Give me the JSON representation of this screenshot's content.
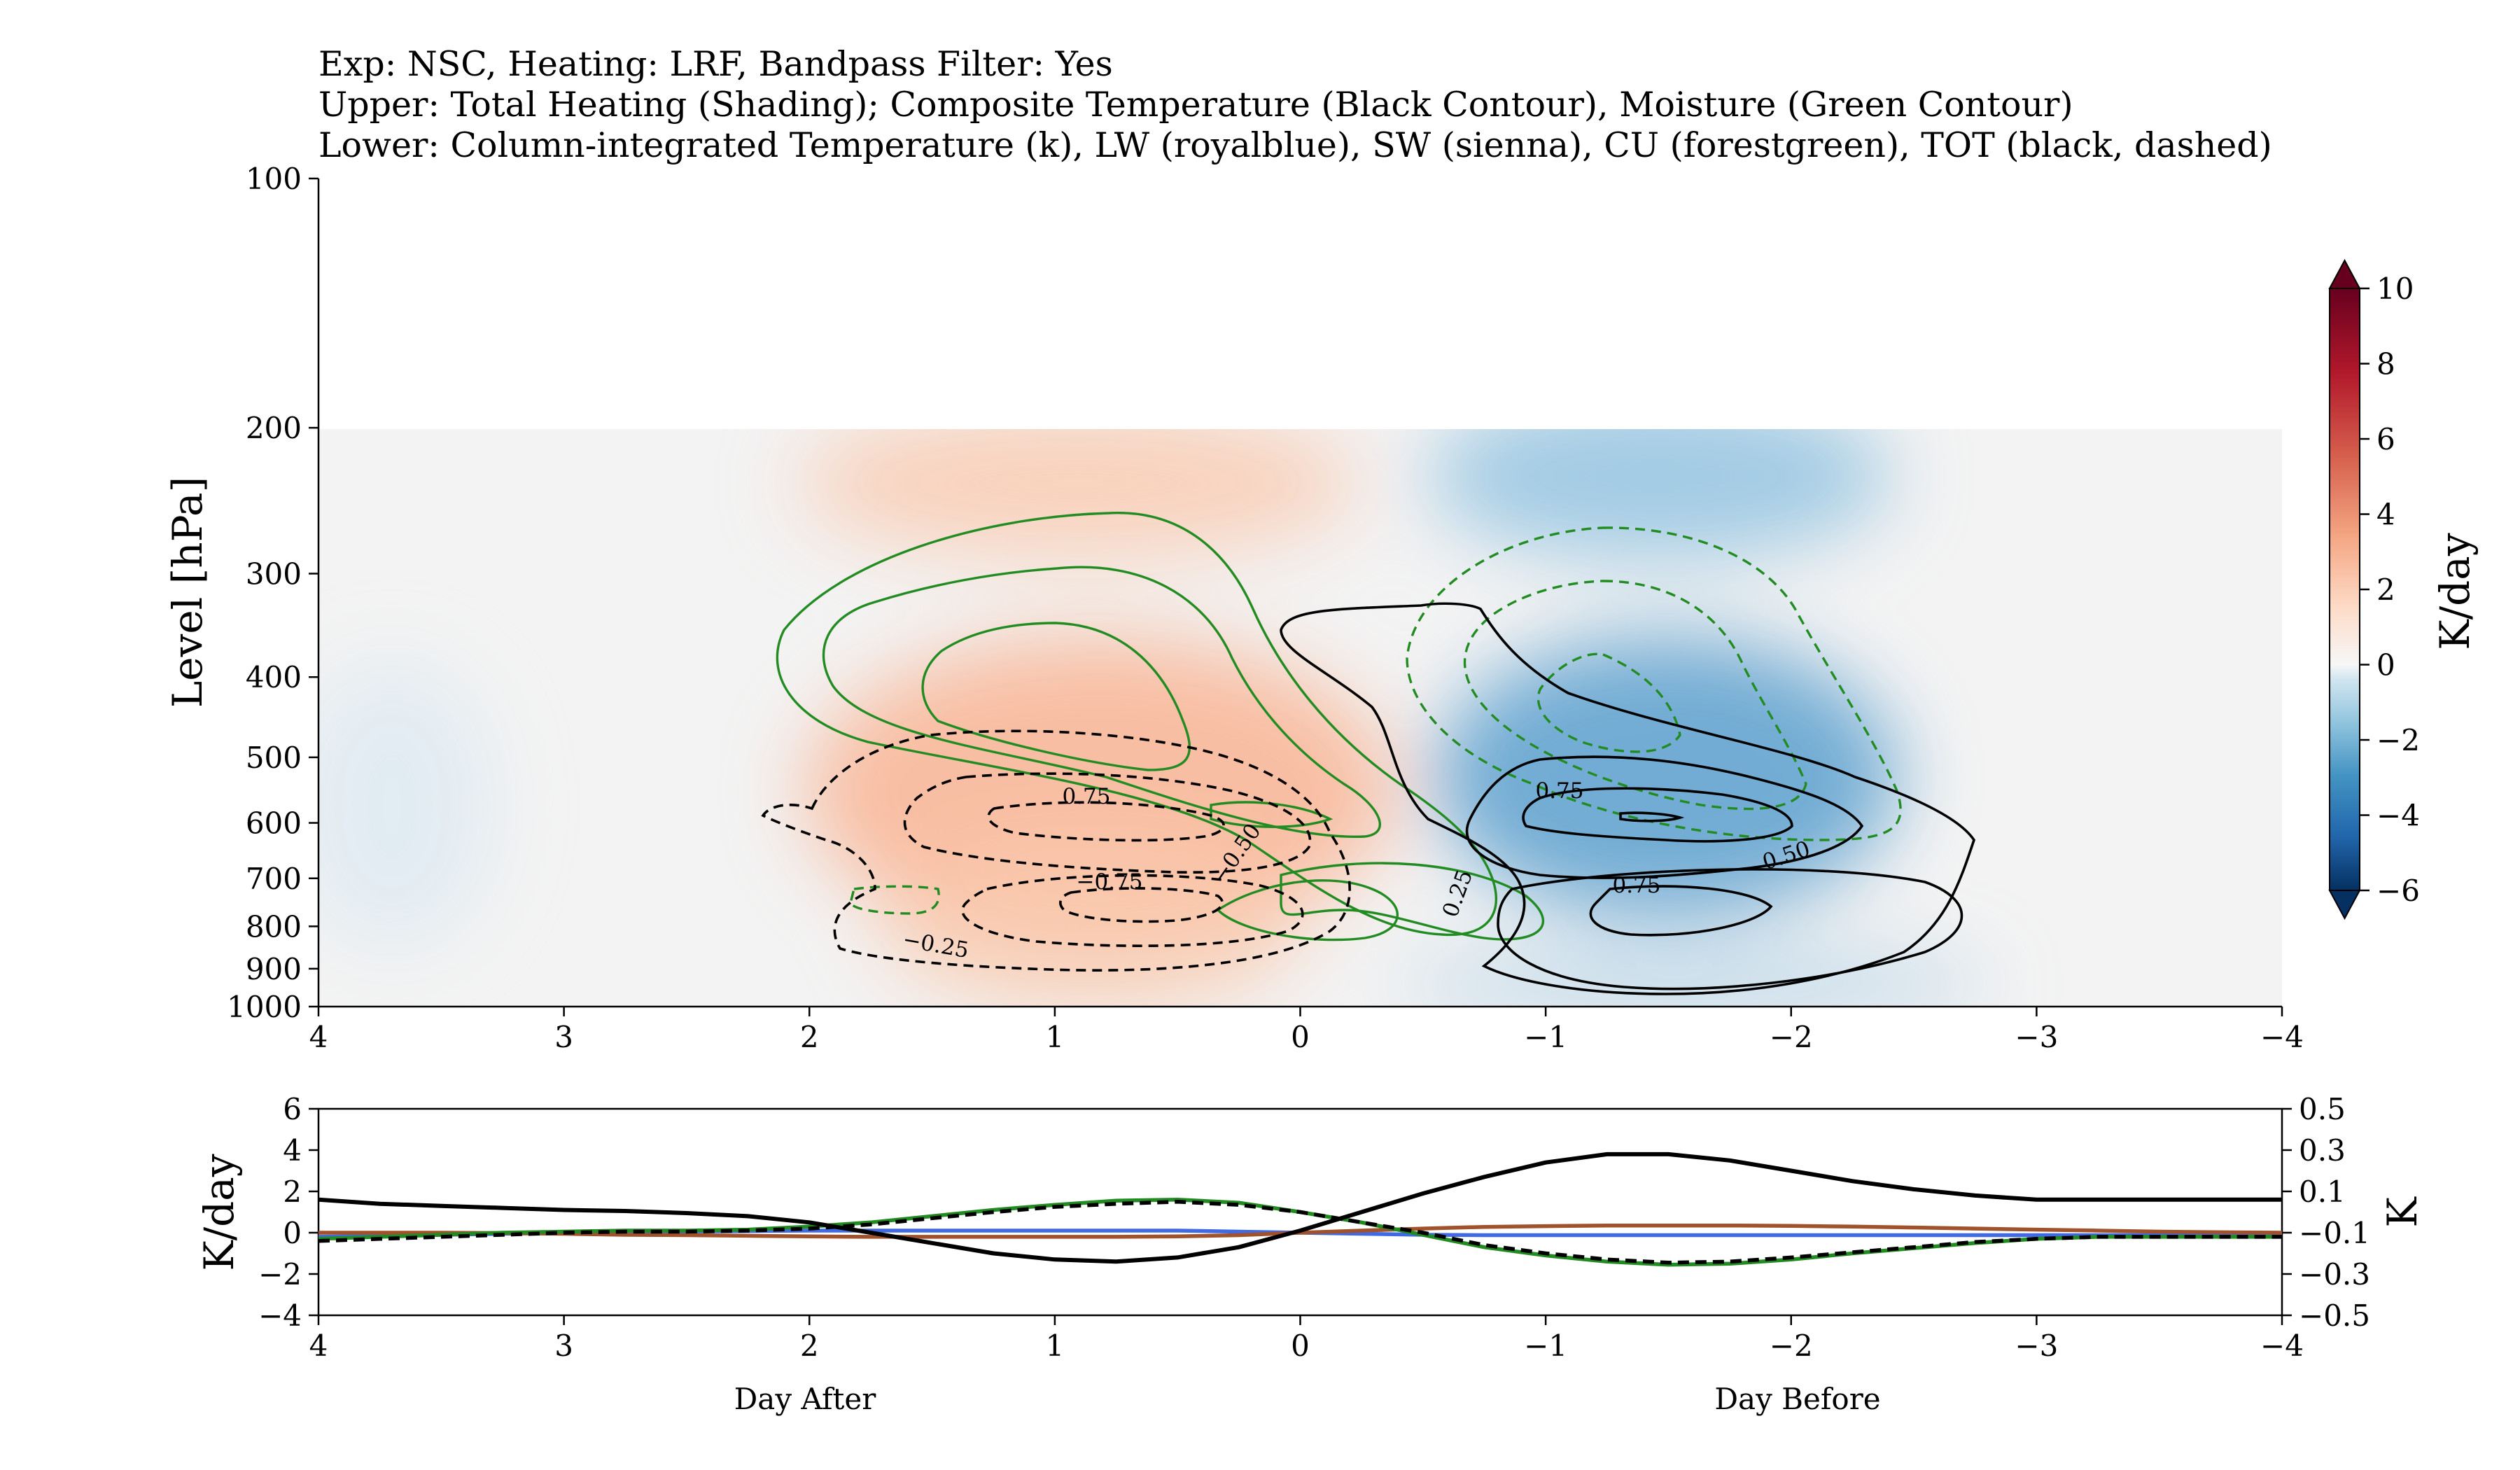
{
  "title_lines": [
    "Exp: NSC, Heating: LRF, Bandpass Filter: Yes",
    "Upper: Total Heating (Shading); Composite Temperature (Black Contour), Moisture (Green Contour)",
    "Lower: Column-integrated Temperature (k), LW (royalblue), SW (sienna), CU (forestgreen), TOT (black, dashed)"
  ],
  "footer": {
    "left": "Day After",
    "right": "Day Before"
  },
  "chart_data": [
    {
      "type": "heatmap",
      "panel": "upper",
      "xlabel": "",
      "ylabel": "Level [hPa]",
      "x_range": [
        4,
        -4
      ],
      "x_ticks": [
        4,
        3,
        2,
        1,
        0,
        -1,
        -2,
        -3,
        -4
      ],
      "x_tick_labels": [
        "4",
        "3",
        "2",
        "1",
        "0",
        "−1",
        "−2",
        "−3",
        "−4"
      ],
      "y_scale": "log",
      "y_range": [
        1000,
        100
      ],
      "y_ticks": [
        100,
        200,
        300,
        400,
        500,
        600,
        700,
        800,
        900,
        1000
      ],
      "shading": {
        "variable": "Total Heating",
        "units": "K/day",
        "cmap": "RdBu_r",
        "vmin": -6,
        "vmax": 10,
        "data_levels": [
          200,
          1000
        ],
        "features": [
          {
            "sign": "positive",
            "center_day": 0.9,
            "center_level": 520,
            "max": 2.0
          },
          {
            "sign": "positive",
            "center_day": 0.9,
            "center_level": 250,
            "max": 1.2
          },
          {
            "sign": "negative",
            "center_day": -1.5,
            "center_level": 510,
            "min": -3.2
          },
          {
            "sign": "negative",
            "center_day": -1.5,
            "center_level": 240,
            "min": -2.0
          },
          {
            "sign": "negative",
            "center_day": -1.5,
            "center_level": 960,
            "min": -1.0
          }
        ]
      },
      "colorbar": {
        "label": "K/day",
        "ticks": [
          10,
          8,
          6,
          4,
          2,
          0,
          -2,
          -4,
          -6
        ],
        "tick_labels": [
          "10",
          "8",
          "6",
          "4",
          "2",
          "0",
          "−2",
          "−4",
          "−6"
        ],
        "extend": "both"
      },
      "temperature_contours": {
        "color": "#000000",
        "levels": [
          -0.75,
          -0.5,
          -0.25,
          0.25,
          0.5,
          0.75
        ],
        "labels": [
          "−0.75",
          "−0.50",
          "−0.25",
          "0.25",
          "0.50",
          "0.75"
        ]
      },
      "moisture_contours": {
        "color": "#228b22"
      }
    },
    {
      "type": "line",
      "panel": "lower",
      "ylabel_left": "K/day",
      "ylabel_right": "K",
      "x_range": [
        4,
        -4
      ],
      "x_ticks": [
        4,
        3,
        2,
        1,
        0,
        -1,
        -2,
        -3,
        -4
      ],
      "x_tick_labels": [
        "4",
        "3",
        "2",
        "1",
        "0",
        "−1",
        "−2",
        "−3",
        "−4"
      ],
      "ylim_left": [
        -4,
        6
      ],
      "y_ticks_left": [
        -4,
        -2,
        0,
        2,
        4,
        6
      ],
      "y_tick_labels_left": [
        "−4",
        "−2",
        "0",
        "2",
        "4",
        "6"
      ],
      "ylim_right": [
        -0.5,
        0.5
      ],
      "y_ticks_right": [
        0.5,
        0.3,
        0.1,
        -0.1,
        -0.3,
        -0.5
      ],
      "y_tick_labels_right": [
        "0.5",
        "0.3",
        "0.1",
        "−0.1",
        "−0.3",
        "−0.5"
      ],
      "x": [
        4,
        3.75,
        3.5,
        3.25,
        3,
        2.75,
        2.5,
        2.25,
        2,
        1.75,
        1.5,
        1.25,
        1,
        0.75,
        0.5,
        0.25,
        0,
        -0.25,
        -0.5,
        -0.75,
        -1,
        -1.25,
        -1.5,
        -1.75,
        -2,
        -2.25,
        -2.5,
        -2.75,
        -3,
        -3.25,
        -3.5,
        -3.75,
        -4
      ],
      "series": [
        {
          "name": "LW",
          "color": "#4169e1",
          "axis": "left",
          "dash": false,
          "values": [
            -0.2,
            -0.15,
            -0.1,
            -0.05,
            0,
            0.03,
            0.06,
            0.08,
            0.1,
            0.1,
            0.1,
            0.1,
            0.1,
            0.1,
            0.1,
            0.05,
            0,
            -0.05,
            -0.1,
            -0.12,
            -0.12,
            -0.12,
            -0.12,
            -0.12,
            -0.12,
            -0.12,
            -0.12,
            -0.12,
            -0.12,
            -0.12,
            -0.12,
            -0.12,
            -0.12
          ]
        },
        {
          "name": "SW",
          "color": "#a0522d",
          "axis": "left",
          "dash": false,
          "values": [
            0,
            0,
            0,
            -0.02,
            -0.05,
            -0.1,
            -0.12,
            -0.15,
            -0.18,
            -0.2,
            -0.2,
            -0.2,
            -0.2,
            -0.2,
            -0.18,
            -0.12,
            0,
            0.1,
            0.2,
            0.28,
            0.32,
            0.35,
            0.35,
            0.35,
            0.33,
            0.3,
            0.25,
            0.2,
            0.15,
            0.1,
            0.05,
            0.02,
            0
          ]
        },
        {
          "name": "CU",
          "color": "#228b22",
          "axis": "left",
          "dash": false,
          "values": [
            -0.3,
            -0.2,
            -0.1,
            0,
            0.05,
            0.1,
            0.1,
            0.15,
            0.3,
            0.5,
            0.8,
            1.1,
            1.35,
            1.55,
            1.6,
            1.45,
            1.0,
            0.5,
            -0.1,
            -0.7,
            -1.1,
            -1.4,
            -1.55,
            -1.5,
            -1.3,
            -1.0,
            -0.75,
            -0.5,
            -0.3,
            -0.2,
            -0.2,
            -0.2,
            -0.2
          ]
        },
        {
          "name": "TOT",
          "color": "#000000",
          "axis": "left",
          "dash": true,
          "values": [
            -0.4,
            -0.3,
            -0.2,
            -0.1,
            0,
            0.05,
            0.05,
            0.1,
            0.2,
            0.4,
            0.7,
            1.0,
            1.25,
            1.4,
            1.5,
            1.35,
            1.0,
            0.5,
            0,
            -0.6,
            -1.0,
            -1.3,
            -1.45,
            -1.4,
            -1.2,
            -0.95,
            -0.7,
            -0.45,
            -0.3,
            -0.2,
            -0.2,
            -0.2,
            -0.2
          ]
        },
        {
          "name": "Column-integrated Temperature",
          "color": "#000000",
          "axis": "right",
          "dash": false,
          "values": [
            0.06,
            0.04,
            0.03,
            0.02,
            0.01,
            0.005,
            -0.005,
            -0.02,
            -0.05,
            -0.1,
            -0.15,
            -0.2,
            -0.23,
            -0.24,
            -0.22,
            -0.17,
            -0.09,
            0.0,
            0.09,
            0.17,
            0.24,
            0.28,
            0.28,
            0.25,
            0.2,
            0.15,
            0.11,
            0.08,
            0.06,
            0.06,
            0.06,
            0.06,
            0.06
          ]
        }
      ]
    }
  ]
}
